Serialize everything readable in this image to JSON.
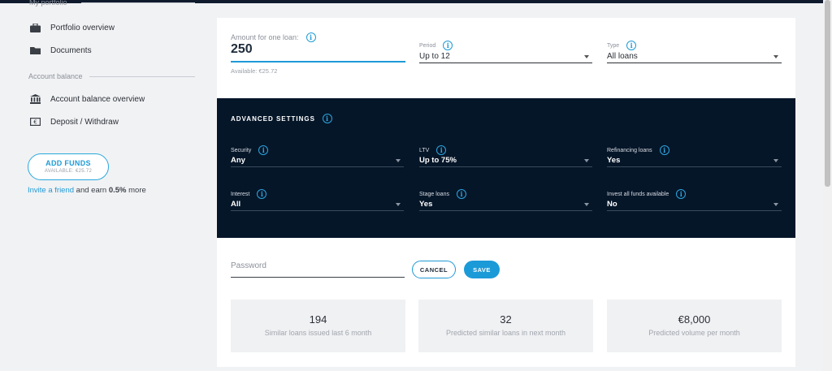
{
  "sidebar": {
    "section_portfolio": "My portfolio",
    "portfolio_items": [
      {
        "label": "Portfolio overview",
        "icon": "briefcase-icon"
      },
      {
        "label": "Documents",
        "icon": "folder-icon"
      }
    ],
    "section_account": "Account balance",
    "account_items": [
      {
        "label": "Account balance overview",
        "icon": "bank-icon"
      },
      {
        "label": "Deposit / Withdraw",
        "icon": "euro-note-icon"
      }
    ],
    "add_funds": {
      "label": "ADD FUNDS",
      "available": "AVAILABLE: €25.72"
    },
    "invite": {
      "link": "Invite a friend",
      "text1": " and earn ",
      "bold": "0.5%",
      "text2": " more"
    }
  },
  "form": {
    "amount": {
      "label": "Amount for one loan:",
      "value": "250",
      "available": "Available: €25.72"
    },
    "period": {
      "label": "Period",
      "value": "Up to 12"
    },
    "type": {
      "label": "Type",
      "value": "All loans"
    }
  },
  "advanced": {
    "title": "ADVANCED SETTINGS",
    "security": {
      "label": "Security",
      "value": "Any"
    },
    "ltv": {
      "label": "LTV",
      "value": "Up to 75%"
    },
    "refinancing": {
      "label": "Refinancing loans",
      "value": "Yes"
    },
    "interest": {
      "label": "Interest",
      "value": "All"
    },
    "stage": {
      "label": "Stage loans",
      "value": "Yes"
    },
    "invest_all": {
      "label": "Invest all funds available",
      "value": "No"
    }
  },
  "actions": {
    "password_placeholder": "Password",
    "cancel": "CANCEL",
    "save": "SAVE"
  },
  "stats": [
    {
      "value": "194",
      "label": "Similar loans issued last 6 month"
    },
    {
      "value": "32",
      "label": "Predicted similar loans in next month"
    },
    {
      "value": "€8,000",
      "label": "Predicted volume per month"
    }
  ],
  "colors": {
    "accent": "#1f9ad6",
    "dark_panel": "#061629"
  }
}
